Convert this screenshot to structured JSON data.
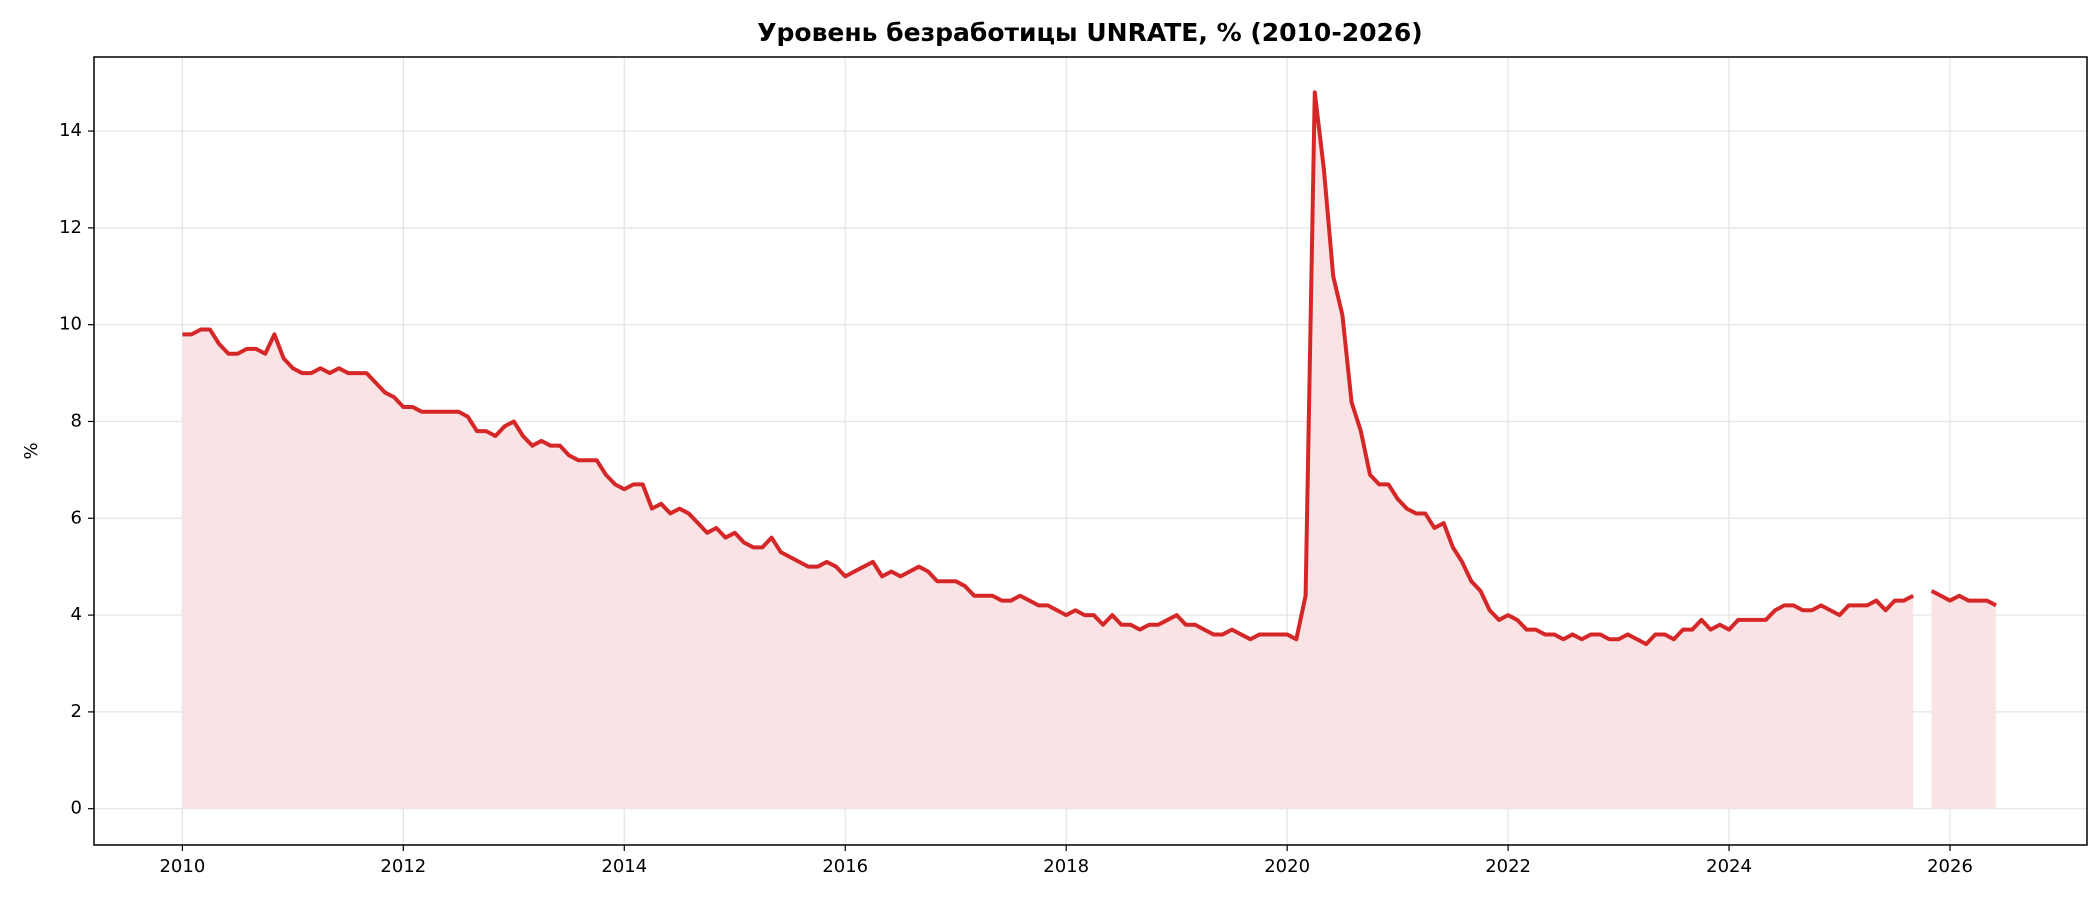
{
  "chart_data": {
    "type": "line",
    "title": "Уровень безработицы UNRATE, % (2010-2026)",
    "ylabel": "%",
    "x": [
      2010,
      2010.083,
      2010.167,
      2010.25,
      2010.333,
      2010.417,
      2010.5,
      2010.583,
      2010.667,
      2010.75,
      2010.833,
      2010.917,
      2011,
      2011.083,
      2011.167,
      2011.25,
      2011.333,
      2011.417,
      2011.5,
      2011.583,
      2011.667,
      2011.75,
      2011.833,
      2011.917,
      2012,
      2012.083,
      2012.167,
      2012.25,
      2012.333,
      2012.417,
      2012.5,
      2012.583,
      2012.667,
      2012.75,
      2012.833,
      2012.917,
      2013,
      2013.083,
      2013.167,
      2013.25,
      2013.333,
      2013.417,
      2013.5,
      2013.583,
      2013.667,
      2013.75,
      2013.833,
      2013.917,
      2014,
      2014.083,
      2014.167,
      2014.25,
      2014.333,
      2014.417,
      2014.5,
      2014.583,
      2014.667,
      2014.75,
      2014.833,
      2014.917,
      2015,
      2015.083,
      2015.167,
      2015.25,
      2015.333,
      2015.417,
      2015.5,
      2015.583,
      2015.667,
      2015.75,
      2015.833,
      2015.917,
      2016,
      2016.083,
      2016.167,
      2016.25,
      2016.333,
      2016.417,
      2016.5,
      2016.583,
      2016.667,
      2016.75,
      2016.833,
      2016.917,
      2017,
      2017.083,
      2017.167,
      2017.25,
      2017.333,
      2017.417,
      2017.5,
      2017.583,
      2017.667,
      2017.75,
      2017.833,
      2017.917,
      2018,
      2018.083,
      2018.167,
      2018.25,
      2018.333,
      2018.417,
      2018.5,
      2018.583,
      2018.667,
      2018.75,
      2018.833,
      2018.917,
      2019,
      2019.083,
      2019.167,
      2019.25,
      2019.333,
      2019.417,
      2019.5,
      2019.583,
      2019.667,
      2019.75,
      2019.833,
      2019.917,
      2020,
      2020.083,
      2020.167,
      2020.25,
      2020.333,
      2020.417,
      2020.5,
      2020.583,
      2020.667,
      2020.75,
      2020.833,
      2020.917,
      2021,
      2021.083,
      2021.167,
      2021.25,
      2021.333,
      2021.417,
      2021.5,
      2021.583,
      2021.667,
      2021.75,
      2021.833,
      2021.917,
      2022,
      2022.083,
      2022.167,
      2022.25,
      2022.333,
      2022.417,
      2022.5,
      2022.583,
      2022.667,
      2022.75,
      2022.833,
      2022.917,
      2023,
      2023.083,
      2023.167,
      2023.25,
      2023.333,
      2023.417,
      2023.5,
      2023.583,
      2023.667,
      2023.75,
      2023.833,
      2023.917,
      2024,
      2024.083,
      2024.167,
      2024.25,
      2024.333,
      2024.417,
      2024.5,
      2024.583,
      2024.667,
      2024.75,
      2024.833,
      2024.917,
      2025,
      2025.083,
      2025.167,
      2025.25,
      2025.333,
      2025.417,
      2025.5,
      2025.583,
      2025.667,
      2025.75,
      2025.833,
      2025.917,
      2026,
      2026.083,
      2026.167,
      2026.25,
      2026.333,
      2026.417
    ],
    "series": [
      {
        "color": "#d62728",
        "fill": "#f9e3e4",
        "values": [
          9.8,
          9.8,
          9.9,
          9.9,
          9.6,
          9.4,
          9.4,
          9.5,
          9.5,
          9.4,
          9.8,
          9.3,
          9.1,
          9.0,
          9.0,
          9.1,
          9.0,
          9.1,
          9.0,
          9.0,
          9.0,
          8.8,
          8.6,
          8.5,
          8.3,
          8.3,
          8.2,
          8.2,
          8.2,
          8.2,
          8.2,
          8.1,
          7.8,
          7.8,
          7.7,
          7.9,
          8.0,
          7.7,
          7.5,
          7.6,
          7.5,
          7.5,
          7.3,
          7.2,
          7.2,
          7.2,
          6.9,
          6.7,
          6.6,
          6.7,
          6.7,
          6.2,
          6.3,
          6.1,
          6.2,
          6.1,
          5.9,
          5.7,
          5.8,
          5.6,
          5.7,
          5.5,
          5.4,
          5.4,
          5.6,
          5.3,
          5.2,
          5.1,
          5.0,
          5.0,
          5.1,
          5.0,
          4.8,
          4.9,
          5.0,
          5.1,
          4.8,
          4.9,
          4.8,
          4.9,
          5.0,
          4.9,
          4.7,
          4.7,
          4.7,
          4.6,
          4.4,
          4.4,
          4.4,
          4.3,
          4.3,
          4.4,
          4.3,
          4.2,
          4.2,
          4.1,
          4.0,
          4.1,
          4.0,
          4.0,
          3.8,
          4.0,
          3.8,
          3.8,
          3.7,
          3.8,
          3.8,
          3.9,
          4.0,
          3.8,
          3.8,
          3.7,
          3.6,
          3.6,
          3.7,
          3.6,
          3.5,
          3.6,
          3.6,
          3.6,
          3.6,
          3.5,
          4.4,
          14.8,
          13.2,
          11.0,
          10.2,
          8.4,
          7.8,
          6.9,
          6.7,
          6.7,
          6.4,
          6.2,
          6.1,
          6.1,
          5.8,
          5.9,
          5.4,
          5.1,
          4.7,
          4.5,
          4.1,
          3.9,
          4.0,
          3.9,
          3.7,
          3.7,
          3.6,
          3.6,
          3.5,
          3.6,
          3.5,
          3.6,
          3.6,
          3.5,
          3.5,
          3.6,
          3.5,
          3.4,
          3.6,
          3.6,
          3.5,
          3.7,
          3.7,
          3.9,
          3.7,
          3.8,
          3.7,
          3.9,
          3.9,
          3.9,
          3.9,
          4.1,
          4.2,
          4.2,
          4.1,
          4.1,
          4.2,
          4.1,
          4.0,
          4.2,
          4.2,
          4.2,
          4.3,
          4.1,
          4.3,
          4.3,
          4.4,
          null,
          4.5,
          4.4,
          4.3,
          4.4,
          4.3,
          4.3,
          4.3,
          4.2
        ]
      }
    ],
    "xlim": [
      2009.2,
      2027.24
    ],
    "xticks": [
      2010,
      2012,
      2014,
      2016,
      2018,
      2020,
      2022,
      2024,
      2026
    ],
    "ylim": [
      -0.75,
      15.53
    ],
    "yticks": [
      0,
      2,
      4,
      6,
      8,
      10,
      12,
      14
    ],
    "grid": true
  }
}
